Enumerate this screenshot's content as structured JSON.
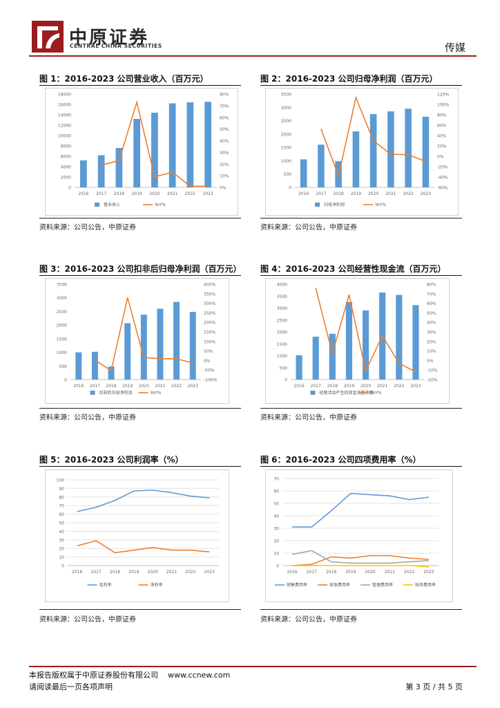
{
  "header": {
    "logo_cn": "中原证券",
    "logo_en": "CENTRAL CHINA SECURITIES",
    "industry": "传媒"
  },
  "colors": {
    "brand": "#9b1c1f",
    "bar": "#5b9bd5",
    "line": "#ed7d31",
    "gray": "#a5a5a5",
    "yellow": "#ffc000"
  },
  "figures": [
    {
      "title": "图 1：2016-2023 公司营业收入（百万元）",
      "source": "资料来源：公司公告，中原证券"
    },
    {
      "title": "图 2：2016-2023 公司归母净利润（百万元）",
      "source": "资料来源：公司公告，中原证券"
    },
    {
      "title": "图 3：2016-2023 公司扣非后归母净利润（百万元）",
      "source": "资料来源：公司公告，中原证券"
    },
    {
      "title": "图 4：2016-2023 公司经营性现金流（百万元）",
      "source": "资料来源：公司公告，中原证券"
    },
    {
      "title": "图 5：2016-2023 公司利润率（%）",
      "source": "资料来源：公司公告，中原证券"
    },
    {
      "title": "图 6：2016-2023 公司四项费用率（%）",
      "source": "资料来源：公司公告，中原证券"
    }
  ],
  "chart_data": [
    {
      "type": "bar+line",
      "categories": [
        "2016",
        "2017",
        "2018",
        "2019",
        "2020",
        "2021",
        "2022",
        "2023"
      ],
      "series": [
        {
          "name": "营业收入",
          "kind": "bar",
          "axis": "left",
          "values": [
            5200,
            6200,
            7600,
            13200,
            14400,
            16200,
            16400,
            16500
          ]
        },
        {
          "name": "YoY%",
          "kind": "line",
          "axis": "right",
          "values": [
            null,
            19,
            23,
            73,
            9,
            13,
            1,
            1
          ]
        }
      ],
      "ylim": [
        0,
        18000
      ],
      "yticks": [
        "0",
        "2000",
        "4000",
        "6000",
        "8000",
        "10000",
        "12000",
        "14000",
        "16000",
        "18000"
      ],
      "y2lim": [
        0,
        80
      ],
      "y2ticks": [
        "0%",
        "10%",
        "20%",
        "30%",
        "40%",
        "50%",
        "60%",
        "70%",
        "80%"
      ]
    },
    {
      "type": "bar+line",
      "categories": [
        "2016",
        "2017",
        "2018",
        "2019",
        "2020",
        "2021",
        "2022",
        "2023"
      ],
      "series": [
        {
          "name": "归母净利润",
          "kind": "bar",
          "axis": "left",
          "values": [
            1050,
            1600,
            980,
            2100,
            2750,
            2850,
            2950,
            2650
          ]
        },
        {
          "name": "YoY%",
          "kind": "line",
          "axis": "right",
          "values": [
            null,
            53,
            -38,
            113,
            30,
            4,
            3,
            -10
          ]
        }
      ],
      "ylim": [
        0,
        3500
      ],
      "yticks": [
        "0",
        "500",
        "1000",
        "1500",
        "2000",
        "2500",
        "3000",
        "3500"
      ],
      "y2lim": [
        -60,
        120
      ],
      "y2ticks": [
        "-60%",
        "-40%",
        "-20%",
        "0%",
        "20%",
        "40%",
        "60%",
        "80%",
        "100%",
        "120%"
      ]
    },
    {
      "type": "bar+line",
      "categories": [
        "2016",
        "2017",
        "2018",
        "2019",
        "2020",
        "2021",
        "2022",
        "2023"
      ],
      "series": [
        {
          "name": "扣非后归母净利润",
          "kind": "bar",
          "axis": "left",
          "values": [
            1000,
            1020,
            480,
            2070,
            2380,
            2600,
            2850,
            2480
          ]
        },
        {
          "name": "YoY%",
          "kind": "line",
          "axis": "right",
          "values": [
            null,
            2,
            -53,
            330,
            15,
            10,
            9,
            -13
          ]
        }
      ],
      "ylim": [
        0,
        3500
      ],
      "yticks": [
        "0",
        "500",
        "1000",
        "1500",
        "2000",
        "2500",
        "3000",
        "3500"
      ],
      "y2lim": [
        -100,
        400
      ],
      "y2ticks": [
        "-100%",
        "-50%",
        "0%",
        "50%",
        "100%",
        "150%",
        "200%",
        "250%",
        "300%",
        "350%",
        "400%"
      ]
    },
    {
      "type": "bar+line",
      "categories": [
        "2016",
        "2017",
        "2018",
        "2019",
        "2020",
        "2021",
        "2022",
        "2023"
      ],
      "series": [
        {
          "name": "经营活动产生的现金流量净额",
          "kind": "bar",
          "axis": "left",
          "values": [
            1020,
            1800,
            1920,
            3250,
            2900,
            3650,
            3550,
            3120
          ]
        },
        {
          "name": "YoY%",
          "kind": "line",
          "axis": "right",
          "values": [
            null,
            76,
            7,
            69,
            -11,
            26,
            -3,
            -12
          ]
        }
      ],
      "ylim": [
        0,
        4000
      ],
      "yticks": [
        "0",
        "500",
        "1000",
        "1500",
        "2000",
        "2500",
        "3000",
        "3500",
        "4000"
      ],
      "y2lim": [
        -20,
        80
      ],
      "y2ticks": [
        "-20%",
        "-10%",
        "0%",
        "10%",
        "20%",
        "30%",
        "40%",
        "50%",
        "60%",
        "70%",
        "80%"
      ]
    },
    {
      "type": "line",
      "categories": [
        "2016",
        "2017",
        "2018",
        "2019",
        "2020",
        "2021",
        "2022",
        "2023"
      ],
      "series": [
        {
          "name": "毛利率",
          "values": [
            63,
            68,
            76,
            87,
            88,
            85,
            81,
            79
          ]
        },
        {
          "name": "净利率",
          "values": [
            23,
            29,
            15,
            18,
            21,
            18,
            18,
            16
          ]
        }
      ],
      "ylim": [
        0,
        100
      ],
      "yticks": [
        "0",
        "10",
        "20",
        "30",
        "40",
        "50",
        "60",
        "70",
        "80",
        "90",
        "100"
      ]
    },
    {
      "type": "line",
      "categories": [
        "2016",
        "2017",
        "2018",
        "2019",
        "2020",
        "2021",
        "2022",
        "2023"
      ],
      "series": [
        {
          "name": "销售费用率",
          "values": [
            31,
            31,
            44,
            58,
            57,
            56,
            53,
            55
          ]
        },
        {
          "name": "研发费用率",
          "values": [
            0,
            1,
            7,
            6,
            8,
            8,
            6,
            5
          ]
        },
        {
          "name": "管理费用率",
          "values": [
            9,
            12,
            3,
            2,
            2,
            2,
            3,
            4
          ]
        },
        {
          "name": "财务费用率",
          "values": [
            0,
            0,
            0,
            0,
            0,
            0,
            0,
            -1
          ]
        }
      ],
      "ylim": [
        0,
        70
      ],
      "yticks": [
        "0",
        "10",
        "20",
        "30",
        "40",
        "50",
        "60",
        "70"
      ]
    }
  ],
  "footer": {
    "copyright": "本报告版权属于中原证券股份有限公司",
    "website": "www.ccnew.com",
    "disclaimer": "请阅读最后一页各项声明",
    "page": "第 3 页 / 共 5 页"
  }
}
